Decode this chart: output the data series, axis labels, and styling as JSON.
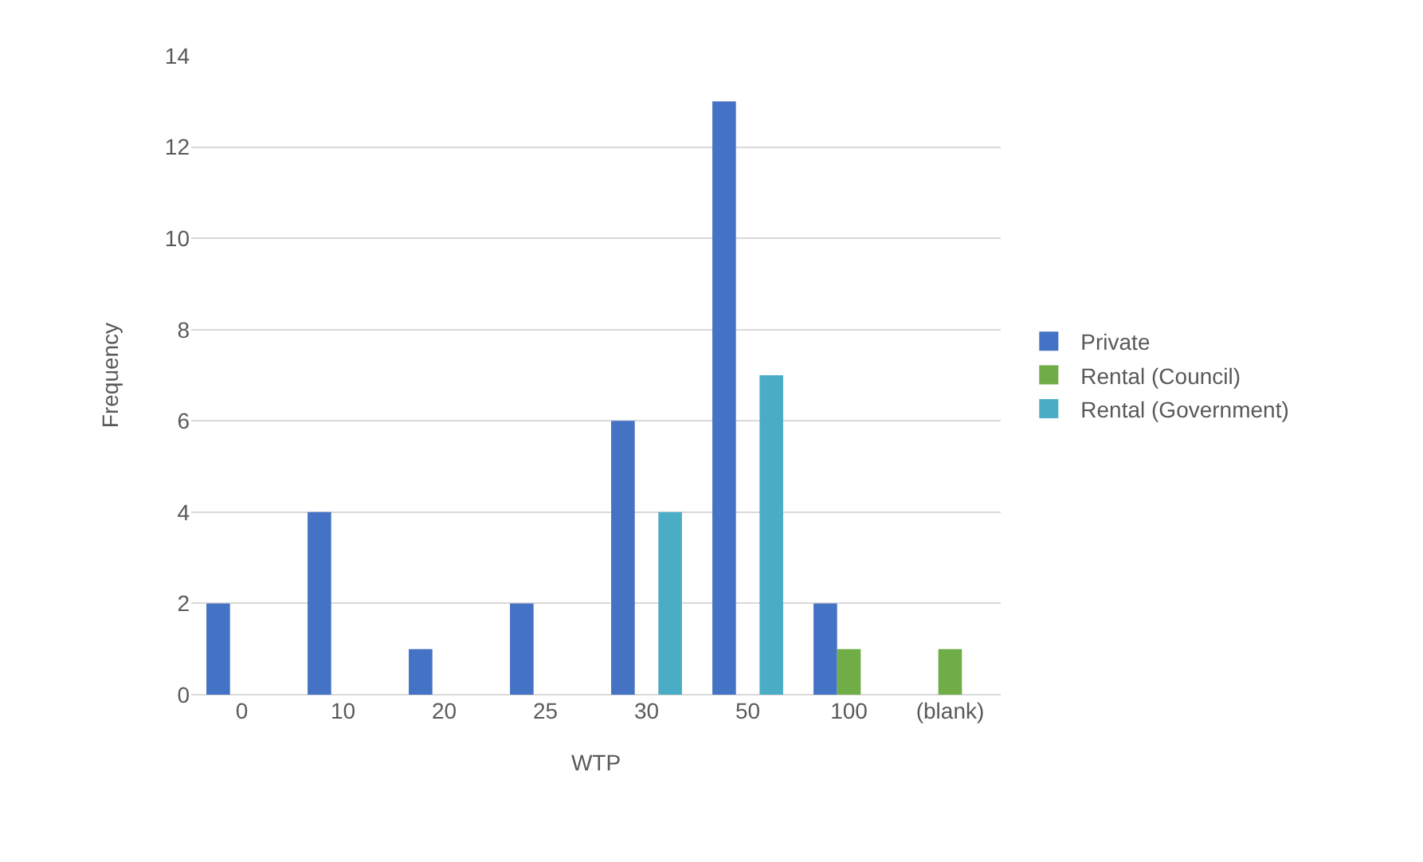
{
  "chart_data": {
    "type": "bar",
    "xlabel": "WTP",
    "ylabel": "Frequency",
    "categories": [
      "0",
      "10",
      "20",
      "25",
      "30",
      "50",
      "100",
      "(blank)"
    ],
    "series": [
      {
        "name": "Private",
        "color": "#4472c4",
        "values": [
          2,
          4,
          1,
          2,
          6,
          13,
          2,
          null
        ]
      },
      {
        "name": "Rental (Council)",
        "color": "#70ad47",
        "values": [
          null,
          null,
          null,
          null,
          null,
          null,
          1,
          1
        ]
      },
      {
        "name": "Rental (Government)",
        "color": "#4bacc6",
        "values": [
          null,
          null,
          null,
          null,
          4,
          7,
          null,
          null
        ]
      }
    ],
    "ylim": [
      0,
      14
    ],
    "yticks": [
      0,
      2,
      4,
      6,
      8,
      10,
      12,
      14
    ],
    "grid": "y",
    "legend": "right"
  }
}
